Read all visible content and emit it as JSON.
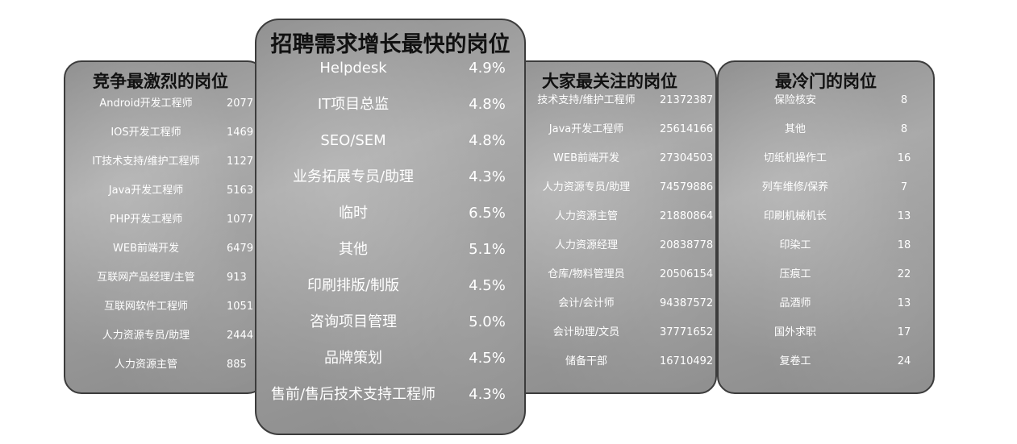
{
  "competitive": {
    "title": "竞争最激烈的岗位",
    "rows": [
      {
        "name": "Android开发工程师",
        "value": "2077"
      },
      {
        "name": "IOS开发工程师",
        "value": "1469"
      },
      {
        "name": "IT技术支持/维护工程师",
        "value": "1127"
      },
      {
        "name": "Java开发工程师",
        "value": "5163"
      },
      {
        "name": "PHP开发工程师",
        "value": "1077"
      },
      {
        "name": "WEB前端开发",
        "value": "6479"
      },
      {
        "name": "互联网产品经理/主管",
        "value": "913"
      },
      {
        "name": "互联网软件工程师",
        "value": "1051"
      },
      {
        "name": "人力资源专员/助理",
        "value": "2444"
      },
      {
        "name": "人力资源主管",
        "value": "885"
      }
    ]
  },
  "growth": {
    "title": "招聘需求增长最快的岗位",
    "rows": [
      {
        "name": "Helpdesk",
        "value": "4.9%"
      },
      {
        "name": "IT项目总监",
        "value": "4.8%"
      },
      {
        "name": "SEO/SEM",
        "value": "4.8%"
      },
      {
        "name": "业务拓展专员/助理",
        "value": "4.3%"
      },
      {
        "name": "临时",
        "value": "6.5%"
      },
      {
        "name": "其他",
        "value": "5.1%"
      },
      {
        "name": "印刷排版/制版",
        "value": "4.5%"
      },
      {
        "name": "咨询项目管理",
        "value": "5.0%"
      },
      {
        "name": "品牌策划",
        "value": "4.5%"
      },
      {
        "name": "售前/售后技术支持工程师",
        "value": "4.3%"
      }
    ]
  },
  "popular": {
    "title": "大家最关注的岗位",
    "rows": [
      {
        "name": "技术支持/维护工程师",
        "value": "21372387"
      },
      {
        "name": "Java开发工程师",
        "value": "25614166"
      },
      {
        "name": "WEB前端开发",
        "value": "27304503"
      },
      {
        "name": "人力资源专员/助理",
        "value": "74579886"
      },
      {
        "name": "人力资源主管",
        "value": "21880864"
      },
      {
        "name": "人力资源经理",
        "value": "20838778"
      },
      {
        "name": "仓库/物料管理员",
        "value": "20506154"
      },
      {
        "name": "会计/会计师",
        "value": "94387572"
      },
      {
        "name": "会计助理/文员",
        "value": "37771652"
      },
      {
        "name": "储备干部",
        "value": "16710492"
      }
    ]
  },
  "cold": {
    "title": "最冷门的岗位",
    "rows": [
      {
        "name": "保险核安",
        "value": "8"
      },
      {
        "name": "其他",
        "value": "8"
      },
      {
        "name": "切纸机操作工",
        "value": "16"
      },
      {
        "name": "列车维修/保养",
        "value": "7"
      },
      {
        "name": "印刷机械机长",
        "value": "13"
      },
      {
        "name": "印染工",
        "value": "18"
      },
      {
        "name": "压痕工",
        "value": "22"
      },
      {
        "name": "品酒师",
        "value": "13"
      },
      {
        "name": "国外求职",
        "value": "17"
      },
      {
        "name": "复卷工",
        "value": "24"
      }
    ]
  }
}
